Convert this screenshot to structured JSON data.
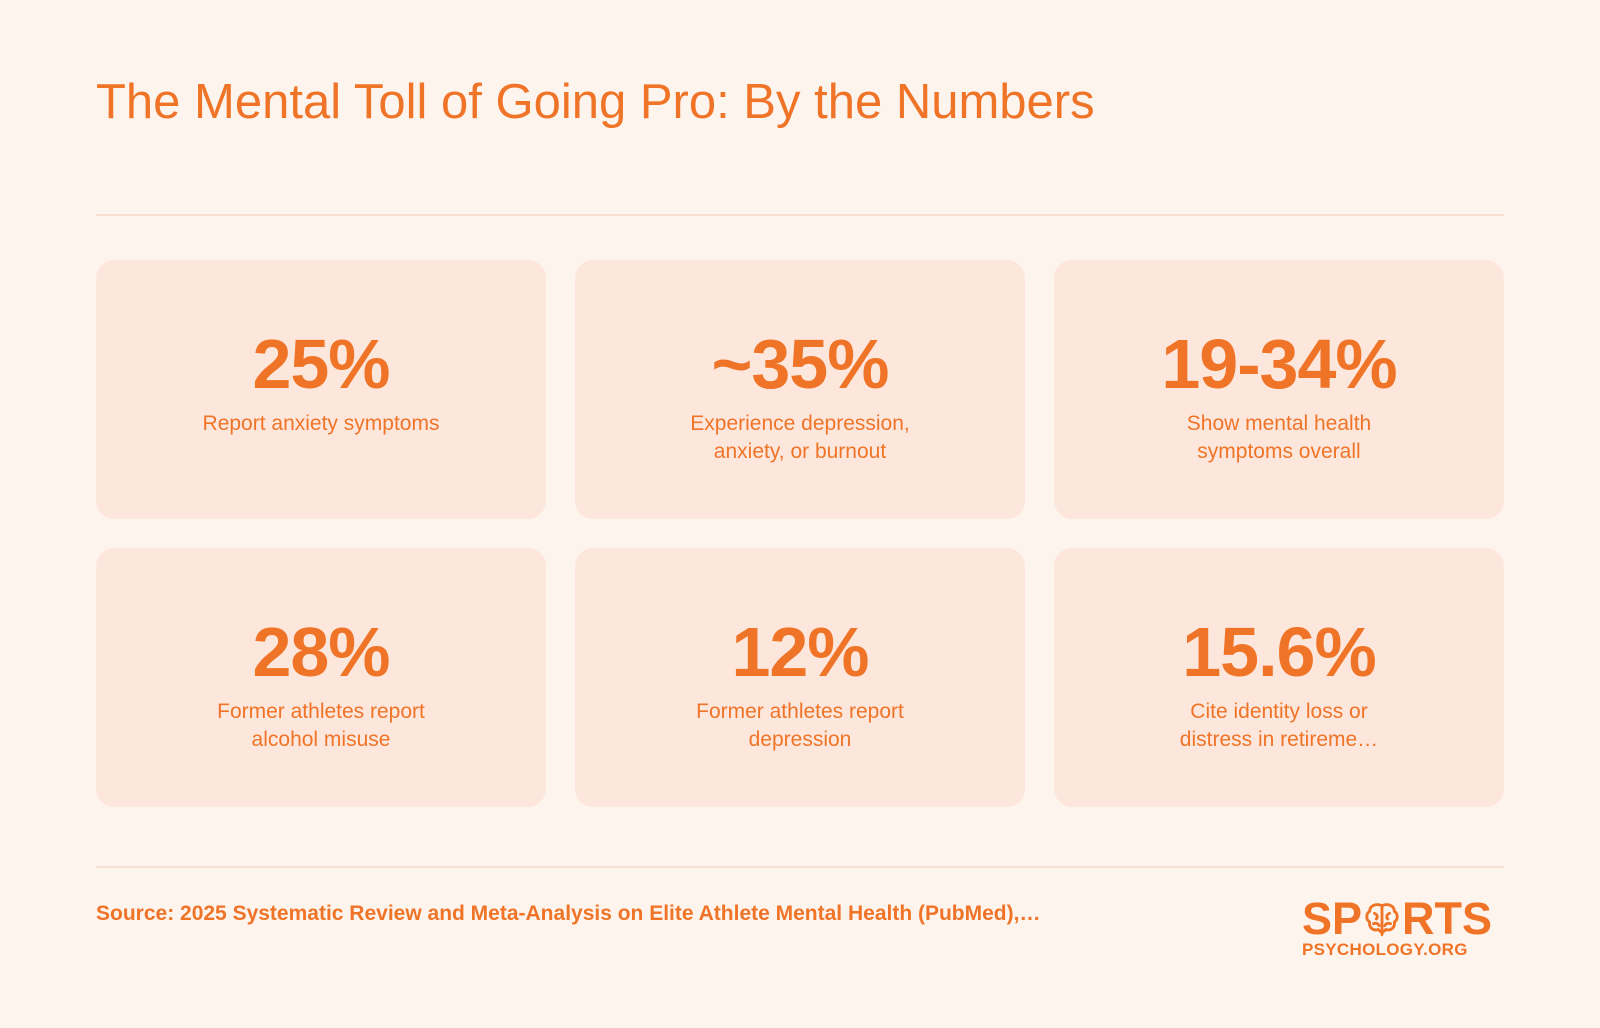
{
  "title": "The Mental Toll of Going Pro: By the Numbers",
  "stats": [
    {
      "value": "25%",
      "label": "Report anxiety symptoms"
    },
    {
      "value": "~35%",
      "label": "Experience depression, anxiety, or burnout"
    },
    {
      "value": "19-34%",
      "label": "Show mental health symptoms overall"
    },
    {
      "value": "28%",
      "label": "Former athletes report alcohol misuse"
    },
    {
      "value": "12%",
      "label": "Former athletes report depression"
    },
    {
      "value": "15.6%",
      "label": "Cite identity loss or distress in retireme…"
    }
  ],
  "source": "Source: 2025 Systematic Review and Meta-Analysis on Elite Athlete Mental Health (PubMed),…",
  "logo": {
    "top_left": "SP",
    "top_right": "RTS",
    "bottom": "PSYCHOLOGY.ORG",
    "icon": "brain-icon"
  },
  "colors": {
    "background": "#fef4ee",
    "card": "#fde7dd",
    "accent": "#f07427",
    "rule": "#f6dfd2"
  }
}
